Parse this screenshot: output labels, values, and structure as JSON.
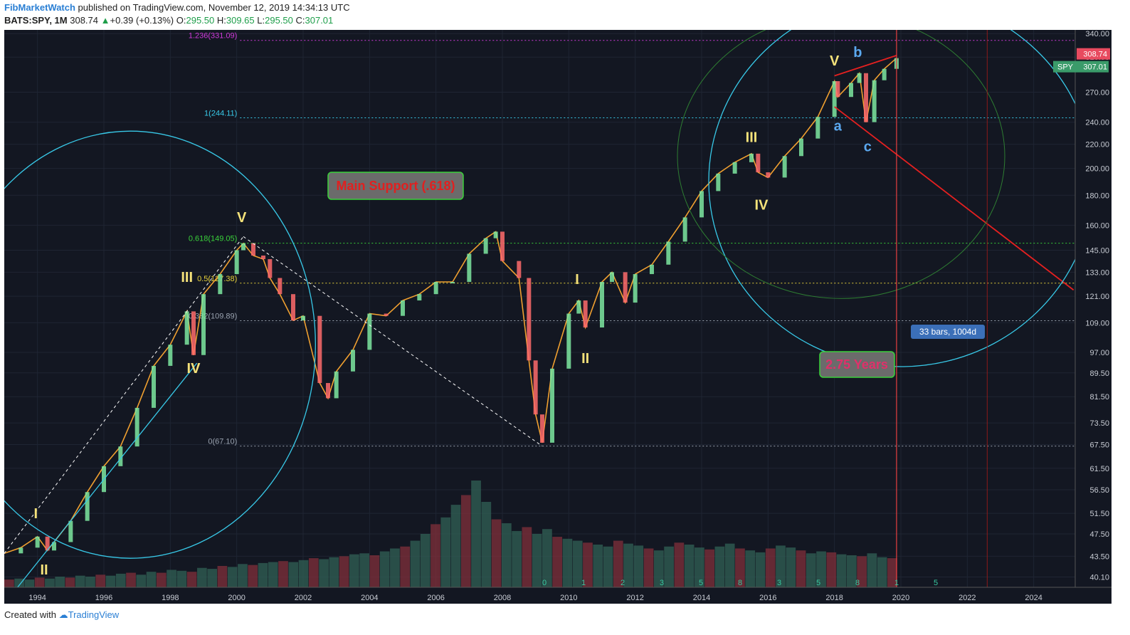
{
  "header": {
    "author": "FibMarketWatch",
    "published_text": " published on TradingView.com, November 12, 2019 14:34:13 UTC",
    "symbol_line": "BATS:SPY, 1M",
    "last": "308.74",
    "change": "+0.39 (+0.13%)",
    "open_label": "O:",
    "open": "295.50",
    "high_label": "H:",
    "high": "309.65",
    "low_label": "L:",
    "low": "295.50",
    "close_label": "C:",
    "close": "307.01"
  },
  "footer": {
    "created_with": "Created with",
    "brand": "TradingView"
  },
  "colors": {
    "bg": "#131722",
    "up": "#26a69a",
    "down": "#ef5350",
    "accent": "#2a7fd4"
  },
  "chart_data": {
    "type": "line",
    "title": "BATS:SPY, 1M",
    "y_scale": "log",
    "ylim": [
      38.5,
      345
    ],
    "xlim": [
      1993.0,
      2025.25
    ],
    "grid": true,
    "price_ticks": [
      "340.00",
      "310.00",
      "270.00",
      "240.00",
      "220.00",
      "200.00",
      "180.00",
      "160.00",
      "145.00",
      "133.00",
      "121.00",
      "109.00",
      "97.00",
      "89.50",
      "81.50",
      "73.50",
      "67.50",
      "61.50",
      "56.50",
      "51.50",
      "47.50",
      "43.50",
      "40.10"
    ],
    "year_ticks": [
      "1994",
      "1996",
      "1998",
      "2000",
      "2002",
      "2004",
      "2006",
      "2008",
      "2010",
      "2012",
      "2014",
      "2016",
      "2018",
      "2020",
      "2022",
      "2024"
    ],
    "series": [
      {
        "name": "SPY",
        "x": [
          1993.0,
          1993.5,
          1994.0,
          1994.3,
          1994.5,
          1995.0,
          1995.5,
          1996.0,
          1996.5,
          1997.0,
          1997.5,
          1998.0,
          1998.5,
          1998.7,
          1999.0,
          1999.5,
          2000.0,
          2000.2,
          2000.5,
          2000.8,
          2001.0,
          2001.3,
          2001.7,
          2002.0,
          2002.5,
          2002.75,
          2003.0,
          2003.5,
          2004.0,
          2004.5,
          2005.0,
          2005.5,
          2006.0,
          2006.5,
          2007.0,
          2007.5,
          2007.8,
          2008.0,
          2008.5,
          2008.8,
          2009.0,
          2009.2,
          2009.5,
          2010.0,
          2010.3,
          2010.5,
          2011.0,
          2011.3,
          2011.7,
          2012.0,
          2012.5,
          2013.0,
          2013.5,
          2014.0,
          2014.5,
          2015.0,
          2015.5,
          2015.7,
          2016.0,
          2016.5,
          2017.0,
          2017.5,
          2018.0,
          2018.1,
          2018.5,
          2018.75,
          2018.95,
          2019.2,
          2019.5,
          2019.87
        ],
        "y": [
          44,
          45,
          47,
          44.5,
          46,
          50,
          56,
          62,
          67,
          78,
          92,
          100,
          114,
          96,
          122,
          132,
          145,
          149,
          142,
          140,
          130,
          122,
          110,
          112,
          86,
          81,
          90,
          98,
          113,
          112,
          119,
          122,
          128,
          128,
          143,
          152,
          156,
          139,
          130,
          94,
          76,
          68,
          91,
          113,
          119,
          107,
          128,
          133,
          118,
          132,
          137,
          150,
          165,
          183,
          196,
          205,
          212,
          197,
          193,
          210,
          225,
          245,
          282,
          265,
          280,
          291,
          240,
          283,
          296,
          308.74
        ]
      }
    ],
    "volume_bars": [
      8,
      9,
      8,
      10,
      9,
      11,
      10,
      12,
      11,
      13,
      12,
      14,
      15,
      13,
      16,
      15,
      18,
      17,
      16,
      20,
      19,
      22,
      21,
      24,
      23,
      25,
      26,
      27,
      26,
      28,
      30,
      29,
      31,
      32,
      34,
      35,
      33,
      37,
      40,
      42,
      48,
      55,
      65,
      72,
      85,
      95,
      110,
      88,
      70,
      66,
      58,
      62,
      55,
      60,
      52,
      50,
      48,
      46,
      44,
      42,
      48,
      45,
      43,
      40,
      38,
      42,
      46,
      44,
      41,
      39,
      42,
      45,
      40,
      38,
      36,
      40,
      43,
      41,
      38,
      35,
      37,
      36,
      34,
      33,
      32,
      35,
      31,
      30
    ],
    "waves": [
      {
        "label": "I",
        "x": 1993.95,
        "y": 50.5,
        "color": "#f5e27a"
      },
      {
        "label": "II",
        "x": 1994.2,
        "y": 40.5,
        "color": "#f5e27a"
      },
      {
        "label": "III",
        "x": 1998.5,
        "y": 128,
        "color": "#f5e27a"
      },
      {
        "label": "IV",
        "x": 1998.7,
        "y": 89.5,
        "color": "#f5e27a"
      },
      {
        "label": "V",
        "x": 2000.15,
        "y": 162,
        "color": "#f5e27a"
      },
      {
        "label": "I",
        "x": 2010.25,
        "y": 127,
        "color": "#f5e27a"
      },
      {
        "label": "II",
        "x": 2010.5,
        "y": 93,
        "color": "#f5e27a"
      },
      {
        "label": "III",
        "x": 2015.5,
        "y": 222,
        "color": "#f5e27a"
      },
      {
        "label": "IV",
        "x": 2015.8,
        "y": 170,
        "color": "#f5e27a"
      },
      {
        "label": "V",
        "x": 2018.0,
        "y": 300,
        "color": "#f5e27a"
      },
      {
        "label": "a",
        "x": 2018.1,
        "y": 232,
        "color": "#5ba9f0"
      },
      {
        "label": "b",
        "x": 2018.7,
        "y": 310,
        "color": "#5ba9f0"
      },
      {
        "label": "c",
        "x": 2019.0,
        "y": 214,
        "color": "#5ba9f0"
      }
    ],
    "fib_levels": [
      {
        "label": "1.236(331.09)",
        "value": 331.09,
        "color": "#d13adb"
      },
      {
        "label": "1(244.11)",
        "value": 244.11,
        "color": "#38c9e8"
      },
      {
        "label": "0.618(149.05)",
        "value": 149.05,
        "color": "#3ad13a"
      },
      {
        "label": "0.5(127.38)",
        "value": 127.38,
        "color": "#e8d23a"
      },
      {
        "label": "0.382(109.89)",
        "value": 109.89,
        "color": "#9aa3b0"
      },
      {
        "label": "0(67.10)",
        "value": 67.1,
        "color": "#9aa3b0"
      }
    ],
    "annotations": {
      "callout_support": "Main Support (.618)",
      "callout_years": "2.75 Years",
      "measure": "33 bars, 1004d",
      "price_last": "308.74",
      "price_spy_tag": "SPY",
      "price_spy": "307.01",
      "cycle_numbers": [
        "0",
        "1",
        "2",
        "3",
        "5",
        "8",
        "3",
        "5",
        "8",
        "1",
        "5"
      ]
    }
  }
}
